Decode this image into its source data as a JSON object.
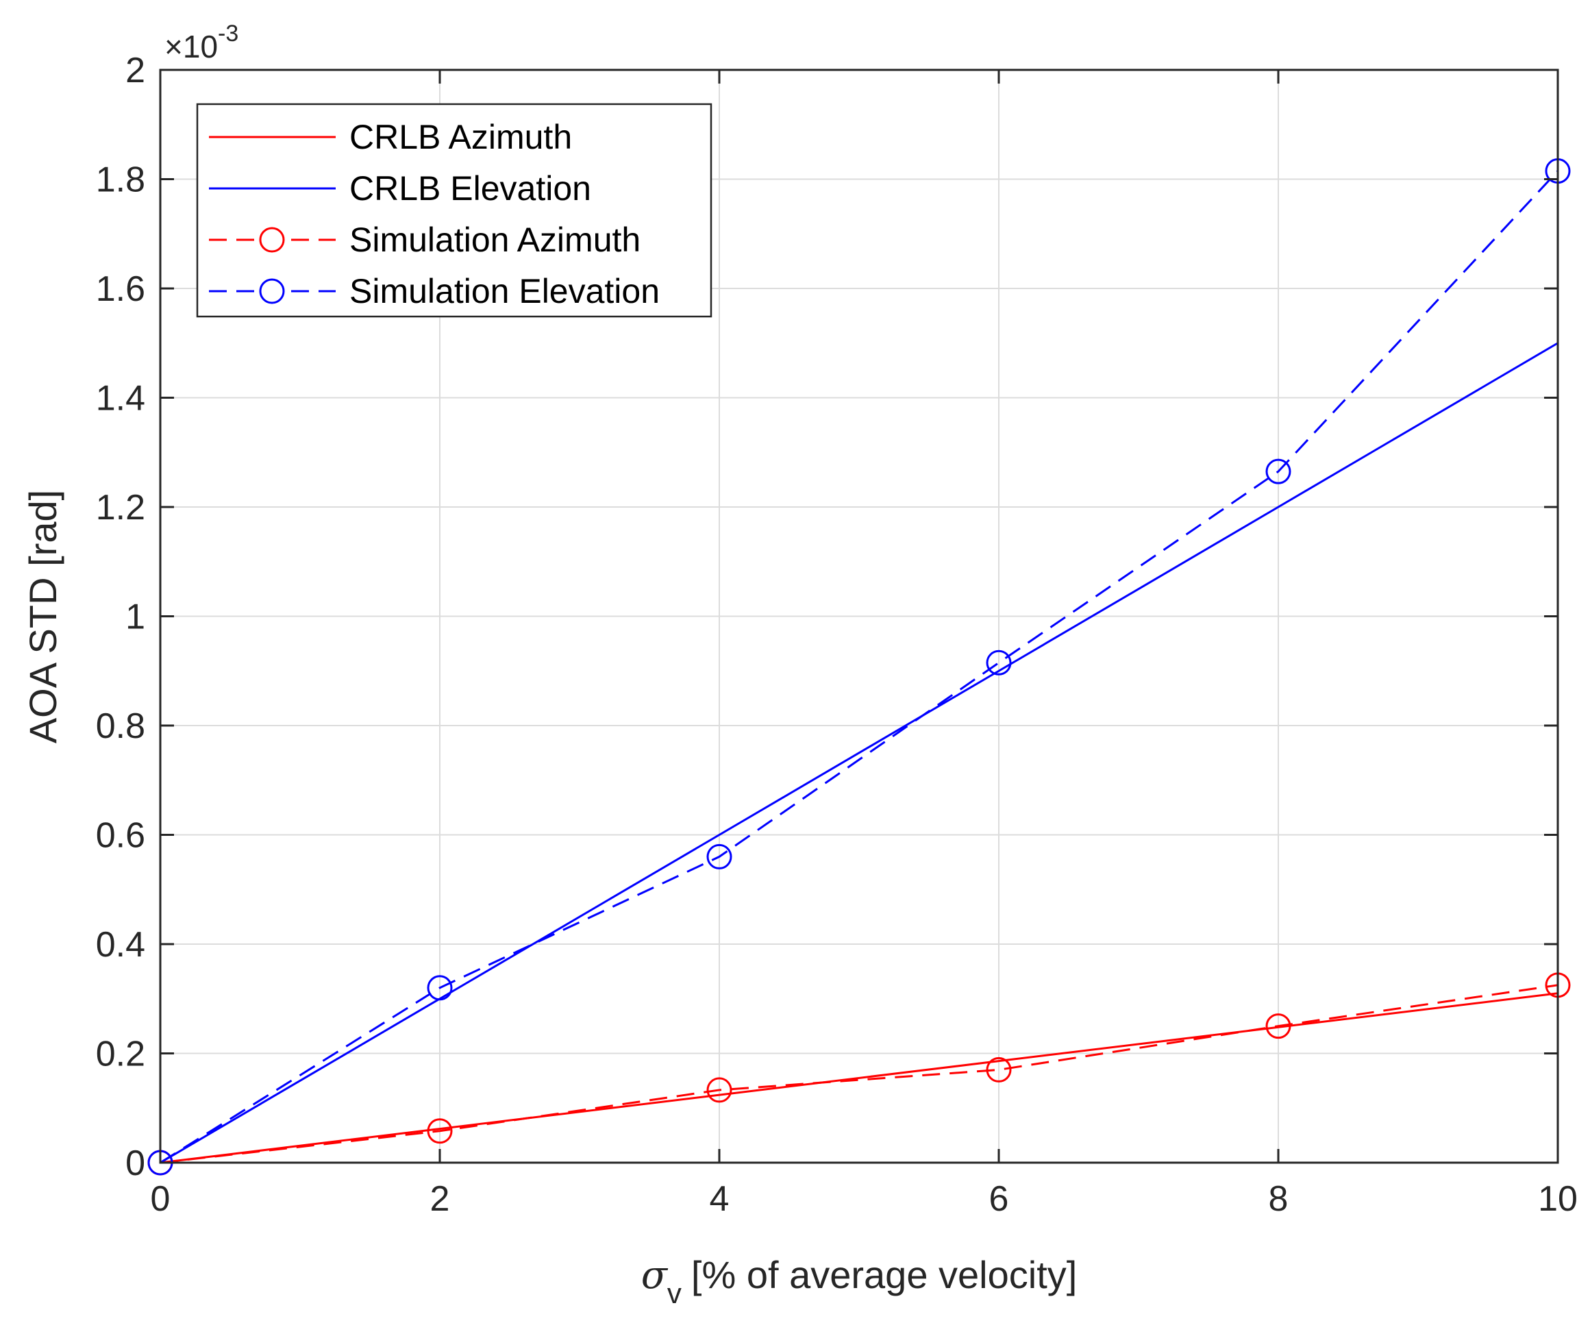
{
  "chart_data": {
    "type": "line",
    "xlabel_symbol": "σ",
    "xlabel_subscript": "v",
    "xlabel_rest": "[% of average velocity]",
    "ylabel": "AOA STD [rad]",
    "y_exponent_prefix": "×10",
    "y_exponent_power": "-3",
    "xlim": [
      0,
      10
    ],
    "ylim": [
      0,
      2
    ],
    "grid": true,
    "legend_position": "top-left",
    "x_ticks": [
      0,
      2,
      4,
      6,
      8,
      10
    ],
    "x_tick_labels": [
      "0",
      "2",
      "4",
      "6",
      "8",
      "10"
    ],
    "y_ticks": [
      0,
      0.2,
      0.4,
      0.6,
      0.8,
      1.0,
      1.2,
      1.4,
      1.6,
      1.8,
      2.0
    ],
    "y_tick_labels": [
      "0",
      "0.2",
      "0.4",
      "0.6",
      "0.8",
      "1",
      "1.2",
      "1.4",
      "1.6",
      "1.8",
      "2"
    ],
    "x": [
      0,
      2,
      4,
      6,
      8,
      10
    ],
    "series": [
      {
        "name": "CRLB Azimuth",
        "color": "#ff0000",
        "style": "solid",
        "marker": "none",
        "values": [
          0,
          0.062,
          0.124,
          0.186,
          0.248,
          0.31
        ]
      },
      {
        "name": "CRLB Elevation",
        "color": "#0000ff",
        "style": "solid",
        "marker": "none",
        "values": [
          0,
          0.3,
          0.6,
          0.9,
          1.2,
          1.5
        ]
      },
      {
        "name": "Simulation Azimuth",
        "color": "#ff0000",
        "style": "dashed",
        "marker": "circle",
        "values": [
          0,
          0.058,
          0.133,
          0.17,
          0.25,
          0.325
        ]
      },
      {
        "name": "Simulation Elevation",
        "color": "#0000ff",
        "style": "dashed",
        "marker": "circle",
        "values": [
          0,
          0.32,
          0.56,
          0.915,
          1.265,
          1.815
        ]
      }
    ]
  }
}
